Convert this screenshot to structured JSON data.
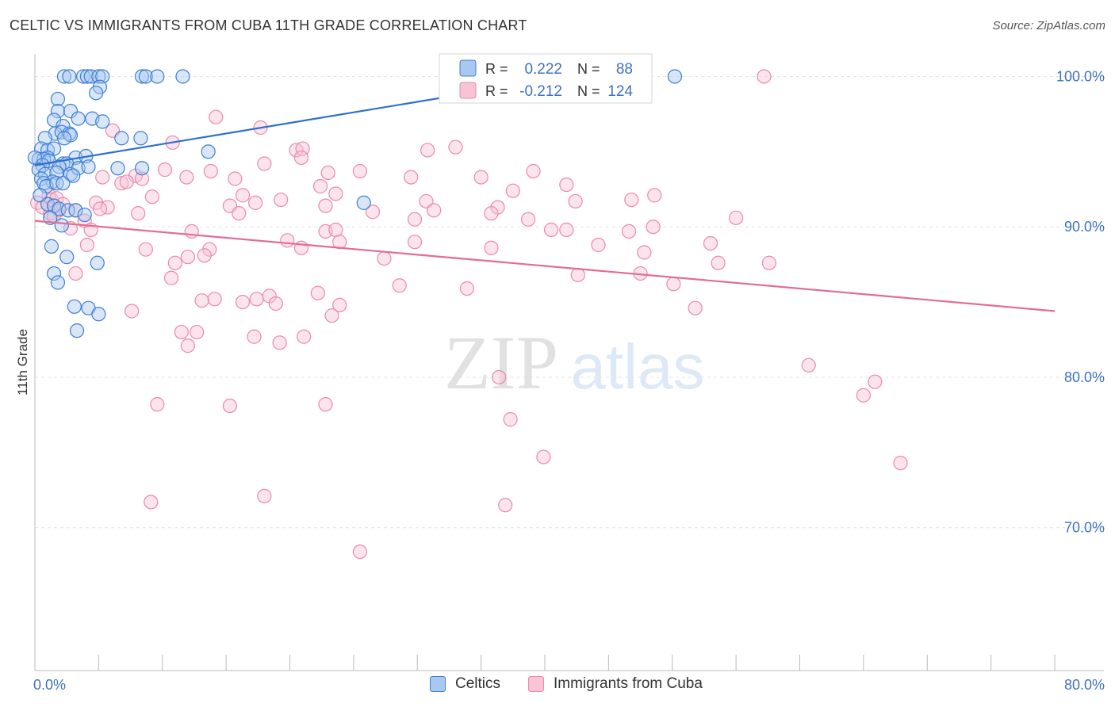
{
  "title": "CELTIC VS IMMIGRANTS FROM CUBA 11TH GRADE CORRELATION CHART",
  "source": "Source: ZipAtlas.com",
  "colors": {
    "celtic_fill": "#a8c8ef",
    "celtic_stroke": "#3d7fd6",
    "celtic_line": "#2f6fce",
    "cuba_fill": "#f7c3d5",
    "cuba_stroke": "#ea8aa9",
    "cuba_line": "#e36b94",
    "axis_text": "#3d72c4",
    "grid": "#e3e3e3"
  },
  "chart_data": {
    "type": "scatter",
    "xlabel": "",
    "ylabel": "11th Grade",
    "xlim": [
      0,
      80
    ],
    "ylim": [
      60.5,
      101.5
    ],
    "x_tick_labels": [
      {
        "value": 0,
        "label": "0.0%"
      },
      {
        "value": 80,
        "label": "80.0%"
      }
    ],
    "y_tick_labels": [
      {
        "value": 100,
        "label": "100.0%"
      },
      {
        "value": 90,
        "label": "90.0%"
      },
      {
        "value": 80,
        "label": "80.0%"
      },
      {
        "value": 70,
        "label": "70.0%"
      }
    ],
    "grid": "horizontal dashed",
    "legend_placement": "top-center",
    "watermark": {
      "word1": "ZIP",
      "word2": "atlas"
    },
    "stats_legend": [
      {
        "r_label": "R =",
        "r_value": "0.222",
        "n_label": "N =",
        "n_value": "88"
      },
      {
        "r_label": "R =",
        "r_value": "-0.212",
        "n_label": "N =",
        "n_value": "124"
      }
    ],
    "series": [
      {
        "name": "Celtics",
        "trend": {
          "x": [
            0,
            42
          ],
          "y": [
            94.1,
            100.0
          ]
        },
        "points": [
          [
            2.3,
            100.0
          ],
          [
            2.7,
            100.0
          ],
          [
            3.8,
            100.0
          ],
          [
            4.1,
            100.0
          ],
          [
            4.4,
            100.0
          ],
          [
            5.0,
            100.0
          ],
          [
            5.3,
            100.0
          ],
          [
            8.4,
            100.0
          ],
          [
            8.7,
            100.0
          ],
          [
            9.6,
            100.0
          ],
          [
            11.6,
            100.0
          ],
          [
            50.2,
            100.0
          ],
          [
            5.1,
            99.3
          ],
          [
            4.8,
            98.9
          ],
          [
            1.8,
            98.5
          ],
          [
            1.8,
            97.7
          ],
          [
            2.8,
            97.7
          ],
          [
            1.5,
            97.1
          ],
          [
            3.4,
            97.2
          ],
          [
            4.5,
            97.2
          ],
          [
            5.3,
            97.0
          ],
          [
            2.2,
            96.7
          ],
          [
            1.6,
            96.2
          ],
          [
            2.1,
            96.3
          ],
          [
            2.7,
            96.2
          ],
          [
            2.8,
            96.1
          ],
          [
            2.3,
            95.9
          ],
          [
            6.8,
            95.9
          ],
          [
            8.3,
            95.9
          ],
          [
            0.8,
            95.9
          ],
          [
            0.5,
            95.2
          ],
          [
            1.0,
            95.1
          ],
          [
            1.5,
            95.2
          ],
          [
            13.6,
            95.0
          ],
          [
            1.0,
            94.6
          ],
          [
            0.3,
            94.5
          ],
          [
            0.7,
            94.5
          ],
          [
            0.0,
            94.6
          ],
          [
            1.1,
            94.4
          ],
          [
            0.6,
            94.1
          ],
          [
            2.2,
            94.2
          ],
          [
            3.2,
            94.6
          ],
          [
            4.0,
            94.7
          ],
          [
            2.5,
            94.2
          ],
          [
            1.9,
            94.0
          ],
          [
            0.3,
            93.8
          ],
          [
            0.8,
            93.5
          ],
          [
            1.7,
            93.6
          ],
          [
            1.4,
            93.0
          ],
          [
            2.8,
            93.5
          ],
          [
            3.4,
            93.9
          ],
          [
            4.2,
            94.0
          ],
          [
            6.5,
            93.9
          ],
          [
            8.4,
            93.9
          ],
          [
            3.0,
            93.4
          ],
          [
            0.5,
            93.2
          ],
          [
            0.7,
            92.9
          ],
          [
            0.9,
            92.7
          ],
          [
            1.7,
            92.9
          ],
          [
            2.2,
            92.9
          ],
          [
            0.4,
            92.1
          ],
          [
            1.0,
            91.5
          ],
          [
            1.5,
            91.4
          ],
          [
            1.9,
            91.2
          ],
          [
            2.6,
            91.1
          ],
          [
            3.2,
            91.1
          ],
          [
            25.8,
            91.6
          ],
          [
            1.2,
            90.6
          ],
          [
            2.1,
            90.1
          ],
          [
            3.9,
            90.8
          ],
          [
            1.3,
            88.7
          ],
          [
            2.5,
            88.0
          ],
          [
            4.9,
            87.6
          ],
          [
            1.5,
            86.9
          ],
          [
            1.8,
            86.3
          ],
          [
            3.1,
            84.7
          ],
          [
            4.2,
            84.6
          ],
          [
            5.0,
            84.2
          ],
          [
            3.3,
            83.1
          ]
        ]
      },
      {
        "name": "Immigrants from Cuba",
        "trend": {
          "x": [
            0,
            80
          ],
          "y": [
            90.4,
            84.4
          ]
        },
        "points": [
          [
            57.2,
            100.0
          ],
          [
            14.2,
            97.3
          ],
          [
            17.7,
            96.6
          ],
          [
            6.1,
            96.4
          ],
          [
            10.8,
            95.6
          ],
          [
            20.5,
            95.1
          ],
          [
            21.0,
            95.2
          ],
          [
            33.0,
            95.3
          ],
          [
            30.8,
            95.1
          ],
          [
            20.9,
            94.6
          ],
          [
            18.0,
            94.2
          ],
          [
            10.2,
            93.8
          ],
          [
            13.8,
            93.7
          ],
          [
            23.0,
            93.6
          ],
          [
            25.5,
            93.7
          ],
          [
            29.5,
            93.3
          ],
          [
            7.9,
            93.4
          ],
          [
            11.9,
            93.3
          ],
          [
            15.7,
            93.2
          ],
          [
            35.0,
            93.3
          ],
          [
            39.1,
            93.7
          ],
          [
            5.3,
            93.3
          ],
          [
            6.8,
            92.9
          ],
          [
            7.2,
            93.0
          ],
          [
            8.4,
            93.2
          ],
          [
            22.4,
            92.7
          ],
          [
            23.6,
            92.2
          ],
          [
            37.5,
            92.4
          ],
          [
            41.7,
            92.8
          ],
          [
            16.3,
            92.1
          ],
          [
            9.2,
            92.0
          ],
          [
            17.3,
            91.6
          ],
          [
            19.3,
            91.8
          ],
          [
            15.3,
            91.4
          ],
          [
            22.8,
            91.4
          ],
          [
            30.7,
            91.7
          ],
          [
            36.3,
            91.3
          ],
          [
            42.4,
            91.7
          ],
          [
            46.8,
            91.8
          ],
          [
            48.6,
            92.1
          ],
          [
            1.1,
            92.1
          ],
          [
            1.3,
            91.8
          ],
          [
            1.7,
            91.9
          ],
          [
            2.2,
            91.5
          ],
          [
            4.8,
            91.6
          ],
          [
            5.7,
            91.3
          ],
          [
            0.2,
            91.6
          ],
          [
            0.6,
            91.3
          ],
          [
            1.2,
            90.9
          ],
          [
            1.9,
            91.1
          ],
          [
            3.2,
            91.1
          ],
          [
            8.1,
            90.9
          ],
          [
            16.0,
            90.9
          ],
          [
            26.5,
            91.0
          ],
          [
            29.8,
            90.5
          ],
          [
            31.3,
            91.1
          ],
          [
            38.7,
            90.5
          ],
          [
            35.8,
            90.9
          ],
          [
            1.5,
            90.7
          ],
          [
            3.9,
            90.4
          ],
          [
            5.1,
            91.2
          ],
          [
            22.8,
            89.7
          ],
          [
            23.6,
            89.8
          ],
          [
            40.5,
            89.8
          ],
          [
            41.7,
            89.8
          ],
          [
            46.6,
            89.7
          ],
          [
            48.5,
            90.0
          ],
          [
            55.0,
            90.6
          ],
          [
            12.3,
            89.7
          ],
          [
            2.8,
            89.9
          ],
          [
            4.4,
            89.8
          ],
          [
            19.8,
            89.1
          ],
          [
            20.9,
            88.6
          ],
          [
            23.9,
            89.0
          ],
          [
            29.8,
            89.0
          ],
          [
            44.2,
            88.8
          ],
          [
            47.8,
            88.3
          ],
          [
            53.0,
            88.9
          ],
          [
            13.7,
            88.5
          ],
          [
            8.7,
            88.5
          ],
          [
            12.0,
            88.0
          ],
          [
            13.3,
            88.1
          ],
          [
            11.0,
            87.6
          ],
          [
            27.4,
            87.9
          ],
          [
            35.8,
            88.6
          ],
          [
            53.6,
            87.6
          ],
          [
            57.6,
            87.6
          ],
          [
            4.1,
            88.8
          ],
          [
            3.2,
            86.9
          ],
          [
            10.7,
            86.6
          ],
          [
            42.6,
            86.8
          ],
          [
            47.5,
            86.9
          ],
          [
            50.1,
            86.2
          ],
          [
            28.6,
            86.1
          ],
          [
            33.9,
            85.9
          ],
          [
            14.1,
            85.2
          ],
          [
            13.1,
            85.1
          ],
          [
            18.4,
            85.4
          ],
          [
            17.4,
            85.2
          ],
          [
            22.2,
            85.6
          ],
          [
            16.3,
            85.0
          ],
          [
            18.9,
            84.9
          ],
          [
            23.9,
            84.8
          ],
          [
            51.8,
            84.6
          ],
          [
            7.6,
            84.4
          ],
          [
            23.3,
            84.1
          ],
          [
            11.5,
            83.0
          ],
          [
            12.7,
            83.0
          ],
          [
            17.2,
            82.7
          ],
          [
            21.1,
            82.7
          ],
          [
            19.2,
            82.3
          ],
          [
            12.0,
            82.1
          ],
          [
            60.7,
            80.8
          ],
          [
            36.4,
            80.0
          ],
          [
            65.9,
            79.7
          ],
          [
            65.0,
            78.8
          ],
          [
            9.6,
            78.2
          ],
          [
            15.3,
            78.1
          ],
          [
            22.8,
            78.2
          ],
          [
            37.3,
            77.2
          ],
          [
            39.9,
            74.7
          ],
          [
            67.9,
            74.3
          ],
          [
            18.0,
            72.1
          ],
          [
            9.1,
            71.7
          ],
          [
            36.9,
            71.5
          ],
          [
            25.5,
            68.4
          ]
        ]
      }
    ]
  }
}
